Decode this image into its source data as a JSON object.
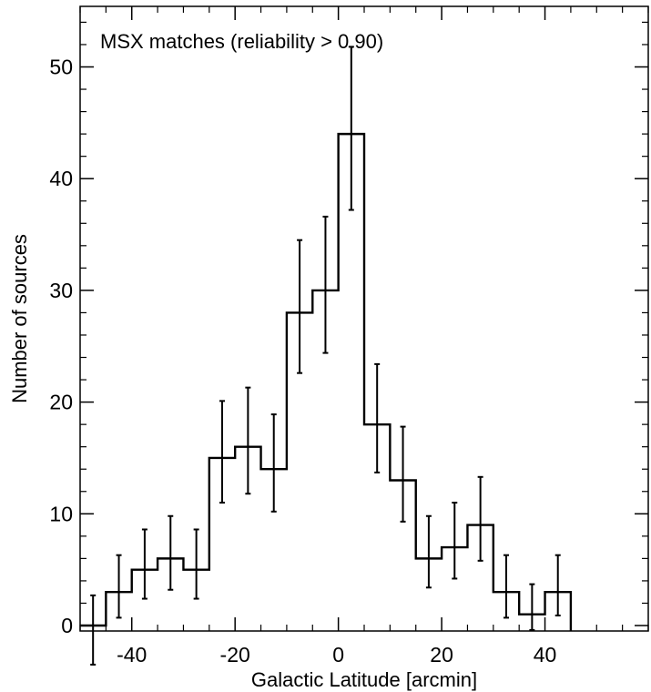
{
  "chart_data": {
    "type": "histogram",
    "annotation": "MSX matches (reliability > 0.90)",
    "xlabel": "Galactic Latitude [arcmin]",
    "ylabel": "Number of sources",
    "xlim": [
      -50,
      60
    ],
    "ylim": [
      0,
      55
    ],
    "xticks": [
      -40,
      -20,
      0,
      20,
      40
    ],
    "xtick_labels": [
      "-40",
      "-20",
      "0",
      "20",
      "40"
    ],
    "yticks": [
      0,
      10,
      20,
      30,
      40,
      50
    ],
    "ytick_labels": [
      "0",
      "10",
      "20",
      "30",
      "40",
      "50"
    ],
    "x_minor_step": 5,
    "y_minor_step": 2,
    "bin_width": 5,
    "bin_start": -50,
    "values": [
      0,
      3,
      5,
      6,
      5,
      15,
      16,
      14,
      28,
      30,
      44,
      18,
      13,
      6,
      7,
      9,
      3,
      1,
      3
    ],
    "error_lower": [
      3.5,
      2.3,
      2.6,
      2.8,
      2.6,
      4.0,
      4.2,
      3.8,
      5.4,
      5.6,
      6.8,
      4.3,
      3.7,
      2.6,
      2.8,
      3.2,
      2.3,
      1.4,
      2.1
    ],
    "error_upper": [
      2.7,
      3.3,
      3.6,
      3.8,
      3.6,
      5.1,
      5.3,
      4.9,
      6.5,
      6.6,
      7.8,
      5.4,
      4.8,
      3.8,
      4.0,
      4.3,
      3.3,
      2.7,
      3.3
    ],
    "grid": false,
    "color": "#000000"
  }
}
